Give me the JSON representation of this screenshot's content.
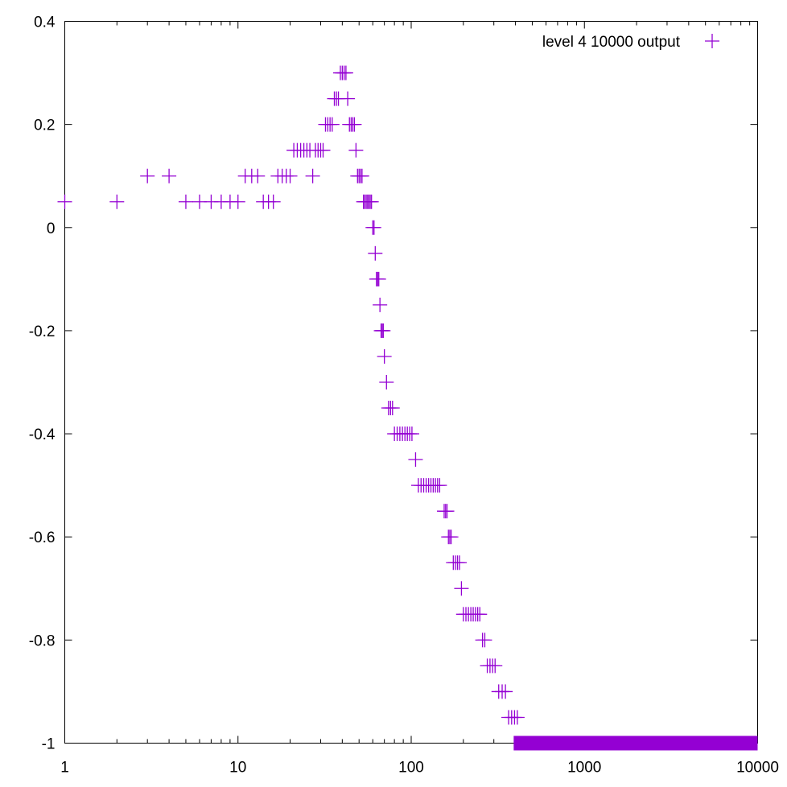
{
  "chart_data": {
    "type": "scatter",
    "title": "",
    "xlabel": "",
    "ylabel": "",
    "x_scale": "log",
    "xlim": [
      1,
      10000
    ],
    "ylim": [
      -1,
      0.4
    ],
    "x_tick_labels": [
      "1",
      "10",
      "100",
      "1000",
      "10000"
    ],
    "y_tick_labels": [
      "0.4",
      "0.2",
      "0",
      "-0.2",
      "-0.4",
      "-0.6",
      "-0.8",
      "-1"
    ],
    "x_ticks": [
      1,
      10,
      100,
      1000,
      10000
    ],
    "y_ticks": [
      0.4,
      0.2,
      0,
      -0.2,
      -0.4,
      -0.6,
      -0.8,
      -1
    ],
    "legend_position": "top-right",
    "marker": "plus",
    "series": [
      {
        "name": "level 4 10000 output",
        "color": "#9400d3",
        "points": [
          [
            1,
            0.05
          ],
          [
            2,
            0.05
          ],
          [
            3,
            0.1
          ],
          [
            4,
            0.1
          ],
          [
            5,
            0.05
          ],
          [
            6,
            0.05
          ],
          [
            7,
            0.05
          ],
          [
            8,
            0.05
          ],
          [
            9,
            0.05
          ],
          [
            10,
            0.05
          ],
          [
            11,
            0.1
          ],
          [
            12,
            0.1
          ],
          [
            13,
            0.1
          ],
          [
            14,
            0.05
          ],
          [
            15,
            0.05
          ],
          [
            16,
            0.05
          ],
          [
            17,
            0.1
          ],
          [
            18,
            0.1
          ],
          [
            19,
            0.1
          ],
          [
            20,
            0.1
          ],
          [
            21,
            0.15
          ],
          [
            22,
            0.15
          ],
          [
            23,
            0.15
          ],
          [
            24,
            0.15
          ],
          [
            25,
            0.15
          ],
          [
            26,
            0.15
          ],
          [
            27,
            0.1
          ],
          [
            28,
            0.15
          ],
          [
            29,
            0.15
          ],
          [
            30,
            0.15
          ],
          [
            31,
            0.15
          ],
          [
            32,
            0.2
          ],
          [
            33,
            0.2
          ],
          [
            34,
            0.2
          ],
          [
            35,
            0.2
          ],
          [
            36,
            0.25
          ],
          [
            37,
            0.25
          ],
          [
            38,
            0.25
          ],
          [
            39,
            0.3
          ],
          [
            40,
            0.3
          ],
          [
            41,
            0.3
          ],
          [
            42,
            0.3
          ],
          [
            43,
            0.25
          ],
          [
            44,
            0.2
          ],
          [
            45,
            0.2
          ],
          [
            46,
            0.2
          ],
          [
            47,
            0.2
          ],
          [
            48,
            0.15
          ],
          [
            49,
            0.1
          ],
          [
            50,
            0.1
          ],
          [
            51,
            0.1
          ],
          [
            52,
            0.1
          ],
          [
            53,
            0.05
          ],
          [
            54,
            0.05
          ],
          [
            55,
            0.05
          ],
          [
            56,
            0.05
          ],
          [
            57,
            0.05
          ],
          [
            58,
            0.05
          ],
          [
            59,
            0.05
          ],
          [
            60,
            0.0
          ],
          [
            61,
            0.0
          ],
          [
            62,
            -0.05
          ],
          [
            63,
            -0.1
          ],
          [
            64,
            -0.1
          ],
          [
            65,
            -0.1
          ],
          [
            66,
            -0.15
          ],
          [
            67,
            -0.2
          ],
          [
            68,
            -0.2
          ],
          [
            69,
            -0.2
          ],
          [
            70,
            -0.25
          ],
          [
            72,
            -0.3
          ],
          [
            74,
            -0.35
          ],
          [
            76,
            -0.35
          ],
          [
            78,
            -0.35
          ],
          [
            80,
            -0.4
          ],
          [
            83,
            -0.4
          ],
          [
            86,
            -0.4
          ],
          [
            89,
            -0.4
          ],
          [
            92,
            -0.4
          ],
          [
            95,
            -0.4
          ],
          [
            98,
            -0.4
          ],
          [
            101,
            -0.4
          ],
          [
            106,
            -0.45
          ],
          [
            110,
            -0.5
          ],
          [
            114,
            -0.5
          ],
          [
            118,
            -0.5
          ],
          [
            122,
            -0.5
          ],
          [
            126,
            -0.5
          ],
          [
            130,
            -0.5
          ],
          [
            134,
            -0.5
          ],
          [
            138,
            -0.5
          ],
          [
            142,
            -0.5
          ],
          [
            146,
            -0.5
          ],
          [
            155,
            -0.55
          ],
          [
            158,
            -0.55
          ],
          [
            161,
            -0.55
          ],
          [
            164,
            -0.6
          ],
          [
            167,
            -0.6
          ],
          [
            170,
            -0.6
          ],
          [
            175,
            -0.65
          ],
          [
            180,
            -0.65
          ],
          [
            185,
            -0.65
          ],
          [
            190,
            -0.65
          ],
          [
            195,
            -0.7
          ],
          [
            200,
            -0.75
          ],
          [
            207,
            -0.75
          ],
          [
            214,
            -0.75
          ],
          [
            221,
            -0.75
          ],
          [
            228,
            -0.75
          ],
          [
            235,
            -0.75
          ],
          [
            242,
            -0.75
          ],
          [
            249,
            -0.75
          ],
          [
            258,
            -0.8
          ],
          [
            266,
            -0.8
          ],
          [
            275,
            -0.85
          ],
          [
            285,
            -0.85
          ],
          [
            295,
            -0.85
          ],
          [
            305,
            -0.85
          ],
          [
            320,
            -0.9
          ],
          [
            335,
            -0.9
          ],
          [
            350,
            -0.9
          ],
          [
            365,
            -0.95
          ],
          [
            380,
            -0.95
          ],
          [
            395,
            -0.95
          ],
          [
            410,
            -0.95
          ]
        ],
        "segments": [
          {
            "y": -1,
            "x_from": 430,
            "x_to": 10000
          }
        ]
      }
    ]
  }
}
